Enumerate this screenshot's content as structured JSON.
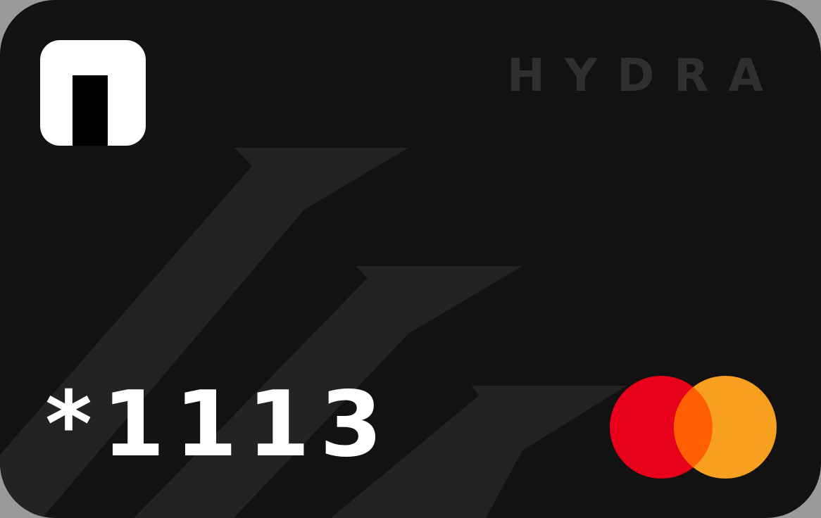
{
  "card": {
    "brand_name": "HYDRA",
    "number_masked": "*1113",
    "brand_logo_icon": "brand-n-logo-icon",
    "network_icon": "mastercard-logo-icon"
  },
  "colors": {
    "card_background": "#121212",
    "stripe": "#232323",
    "brand_text": "#2f2f2f",
    "number_text": "#ffffff",
    "network_red": "#e9001b",
    "network_orange": "#f79f1f",
    "network_overlap": "#ff5f00"
  }
}
